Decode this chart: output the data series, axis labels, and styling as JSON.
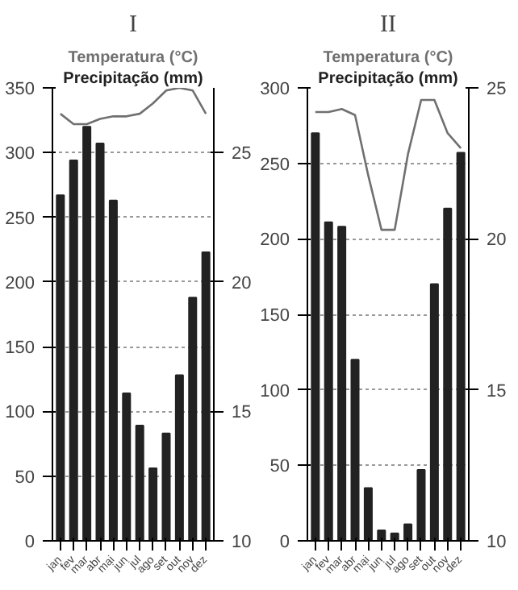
{
  "chart_data": [
    {
      "type": "bar",
      "title": "I",
      "categories": [
        "jan",
        "fev",
        "mar",
        "abr",
        "mai",
        "jun",
        "jul",
        "ago",
        "set",
        "out",
        "nov",
        "dez"
      ],
      "ylim": [
        0,
        350
      ],
      "yticks": [
        0,
        50,
        100,
        150,
        200,
        250,
        300,
        350
      ],
      "y2lim": [
        10,
        27.5
      ],
      "y2ticks": [
        10,
        15,
        20,
        25
      ],
      "grid": "y",
      "legend": "top",
      "series": [
        {
          "name": "Temperatura (°C)",
          "type": "line",
          "axis": "y2",
          "color": "#707070",
          "values": [
            26.5,
            26.1,
            26.1,
            26.3,
            26.4,
            26.4,
            26.5,
            26.9,
            27.4,
            27.5,
            27.4,
            26.5
          ]
        },
        {
          "name": "Precipitação (mm)",
          "color": "#222222",
          "values": [
            267,
            294,
            320,
            307,
            263,
            114,
            89,
            56,
            83,
            128,
            188,
            223
          ]
        }
      ]
    },
    {
      "type": "bar",
      "title": "II",
      "categories": [
        "jan",
        "fev",
        "mar",
        "abr",
        "mai",
        "jun",
        "jul",
        "ago",
        "set",
        "out",
        "nov",
        "dez"
      ],
      "ylim": [
        0,
        300
      ],
      "yticks": [
        0,
        50,
        100,
        150,
        200,
        250,
        300
      ],
      "y2lim": [
        10,
        25
      ],
      "y2ticks": [
        10,
        15,
        20,
        25
      ],
      "grid": "y",
      "legend": "top",
      "series": [
        {
          "name": "Temperatura (°C)",
          "type": "line",
          "axis": "y2",
          "color": "#707070",
          "values": [
            24.2,
            24.2,
            24.3,
            24.1,
            22.1,
            20.3,
            20.3,
            22.8,
            24.6,
            24.6,
            23.5,
            23.0
          ]
        },
        {
          "name": "Precipitação (mm)",
          "color": "#222222",
          "values": [
            270,
            211,
            208,
            120,
            35,
            7,
            5,
            11,
            47,
            170,
            220,
            257
          ]
        }
      ]
    }
  ]
}
